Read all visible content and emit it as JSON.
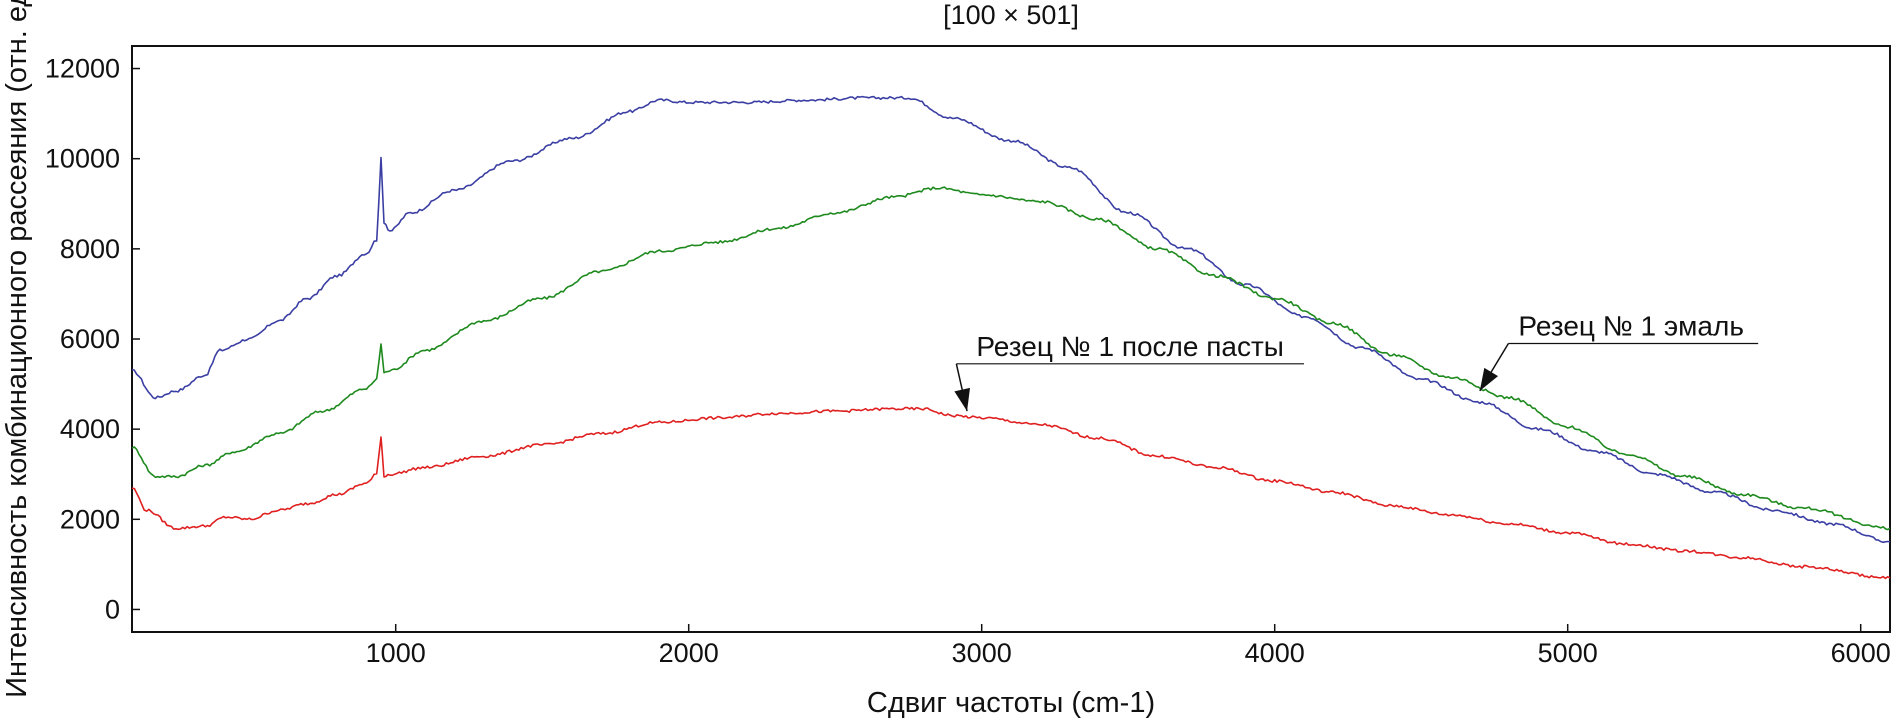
{
  "chart_data": {
    "type": "line",
    "title": "[100 × 501]",
    "xlabel": "Сдвиг частоты (cm-1)",
    "ylabel": "Интенсивность комбинационного рассеяния (отн. ед)",
    "xlim": [
      100,
      6100
    ],
    "ylim": [
      -500,
      12500
    ],
    "x_ticks": [
      1000,
      2000,
      3000,
      4000,
      5000,
      6000
    ],
    "y_ticks": [
      0,
      2000,
      4000,
      6000,
      8000,
      10000,
      12000
    ],
    "grid": false,
    "legend": "none",
    "series": [
      {
        "color": "#3b3fa3",
        "x": [
          100,
          180,
          250,
          350,
          400,
          500,
          600,
          700,
          800,
          900,
          935,
          950,
          960,
          980,
          1050,
          1200,
          1400,
          1600,
          1800,
          1900,
          2000,
          2200,
          2400,
          2600,
          2750,
          2900,
          3100,
          3300,
          3500,
          3700,
          3900,
          4100,
          4300,
          4500,
          4700,
          4900,
          5100,
          5300,
          5500,
          5700,
          5900,
          6100
        ],
        "y": [
          5300,
          4700,
          4850,
          5200,
          5750,
          6000,
          6400,
          6900,
          7400,
          7900,
          8200,
          10000,
          8600,
          8400,
          8800,
          9300,
          9950,
          10450,
          11050,
          11300,
          11250,
          11250,
          11300,
          11350,
          11350,
          10900,
          10400,
          9800,
          8800,
          8000,
          7200,
          6500,
          5800,
          5100,
          4600,
          4000,
          3500,
          3000,
          2600,
          2200,
          1900,
          1500
        ]
      },
      {
        "color": "#1e8a1e",
        "x": [
          100,
          180,
          250,
          350,
          450,
          600,
          750,
          900,
          935,
          950,
          960,
          980,
          1100,
          1300,
          1500,
          1700,
          1900,
          2100,
          2300,
          2500,
          2700,
          2850,
          3000,
          3200,
          3400,
          3600,
          3800,
          4000,
          4200,
          4400,
          4600,
          4800,
          5000,
          5200,
          5400,
          5600,
          5800,
          6100
        ],
        "y": [
          3600,
          2950,
          2950,
          3200,
          3500,
          3900,
          4400,
          4900,
          5100,
          5900,
          5250,
          5300,
          5750,
          6400,
          6900,
          7500,
          7950,
          8150,
          8450,
          8800,
          9150,
          9350,
          9200,
          9050,
          8650,
          8000,
          7400,
          6900,
          6350,
          5650,
          5150,
          4700,
          4050,
          3450,
          2950,
          2550,
          2250,
          1800
        ]
      },
      {
        "color": "#e02020",
        "x": [
          100,
          150,
          250,
          350,
          420,
          500,
          600,
          700,
          800,
          900,
          935,
          950,
          960,
          980,
          1100,
          1300,
          1500,
          1700,
          1900,
          2100,
          2300,
          2500,
          2700,
          2800,
          2900,
          3000,
          3200,
          3400,
          3600,
          3800,
          4000,
          4200,
          4400,
          4600,
          4800,
          5000,
          5200,
          5400,
          5600,
          5800,
          6100
        ],
        "y": [
          2700,
          2200,
          1800,
          1850,
          2050,
          2000,
          2200,
          2350,
          2550,
          2800,
          3000,
          3850,
          2950,
          3000,
          3150,
          3400,
          3650,
          3900,
          4150,
          4250,
          4350,
          4400,
          4450,
          4450,
          4300,
          4250,
          4100,
          3800,
          3400,
          3150,
          2850,
          2600,
          2300,
          2100,
          1900,
          1700,
          1450,
          1300,
          1150,
          950,
          700
        ]
      }
    ],
    "annotations": [
      {
        "text": "Резец № 1 после пасты",
        "target_x": 2950,
        "target_y": 4400,
        "label_x": 3050,
        "label_y": 5450,
        "line_end_x": 4100
      },
      {
        "text": "Резец № 1 эмаль",
        "target_x": 4700,
        "target_y": 4850,
        "label_x": 4900,
        "label_x_end": 5650,
        "label_y": 5900
      }
    ]
  }
}
